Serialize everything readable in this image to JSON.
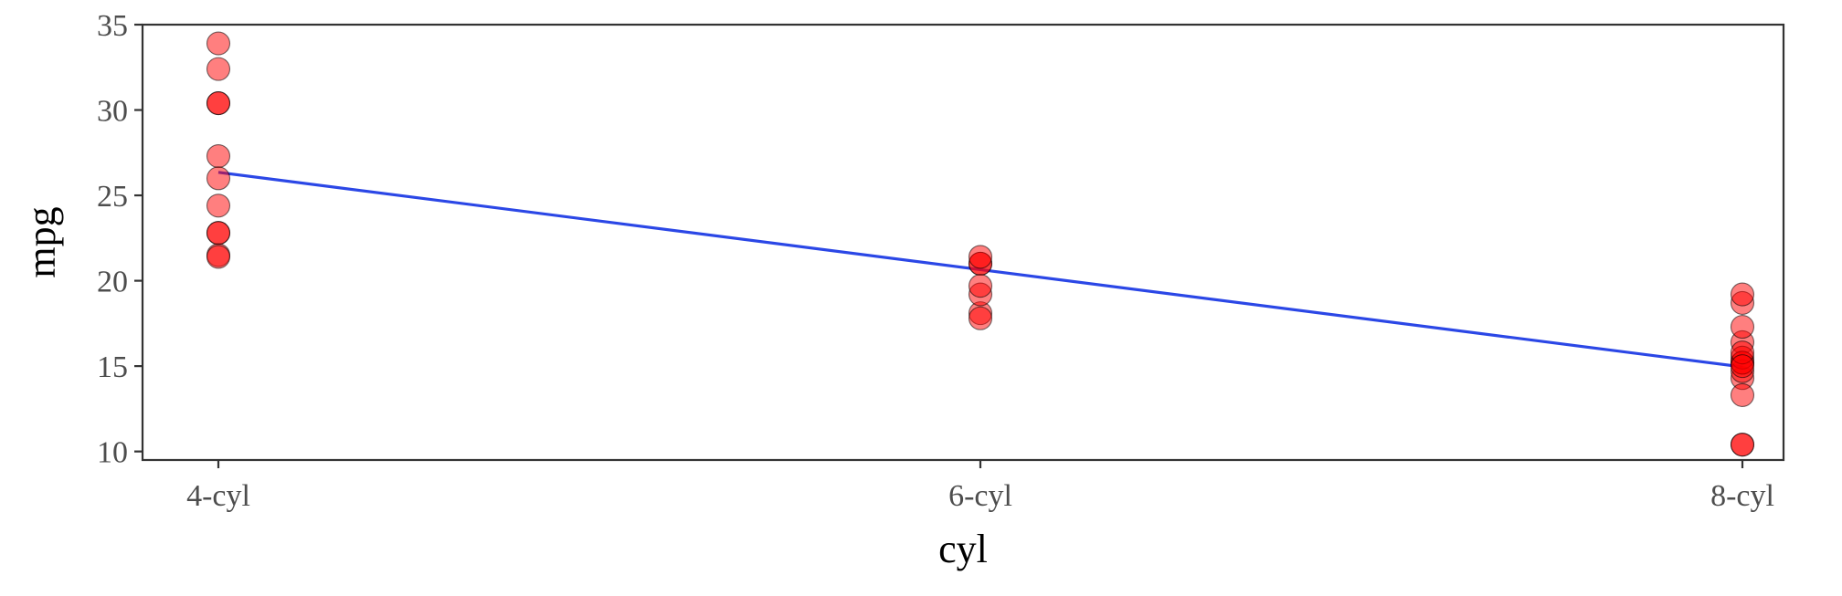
{
  "chart_data": {
    "type": "scatter",
    "title": "",
    "xlabel": "cyl",
    "ylabel": "mpg",
    "categories": [
      "4-cyl",
      "6-cyl",
      "8-cyl"
    ],
    "ylim": [
      9.5,
      35
    ],
    "yticks": [
      10,
      15,
      20,
      25,
      30,
      35
    ],
    "grid": false,
    "legend": "none",
    "point_color": "#ff0000",
    "line_color": "#2b47e6",
    "series": [
      {
        "category": "4-cyl",
        "values": [
          22.8,
          24.4,
          22.8,
          32.4,
          30.4,
          33.9,
          21.5,
          27.3,
          26.0,
          30.4,
          21.4
        ]
      },
      {
        "category": "6-cyl",
        "values": [
          21.0,
          21.0,
          21.4,
          18.1,
          19.2,
          17.8,
          19.7
        ]
      },
      {
        "category": "8-cyl",
        "values": [
          18.7,
          14.3,
          16.4,
          17.3,
          15.2,
          10.4,
          10.4,
          14.7,
          15.5,
          15.2,
          13.3,
          19.2,
          15.8,
          15.0
        ]
      }
    ],
    "fit_line": {
      "x": [
        "4-cyl",
        "6-cyl",
        "8-cyl"
      ],
      "y": [
        26.35,
        20.65,
        14.95
      ]
    }
  }
}
